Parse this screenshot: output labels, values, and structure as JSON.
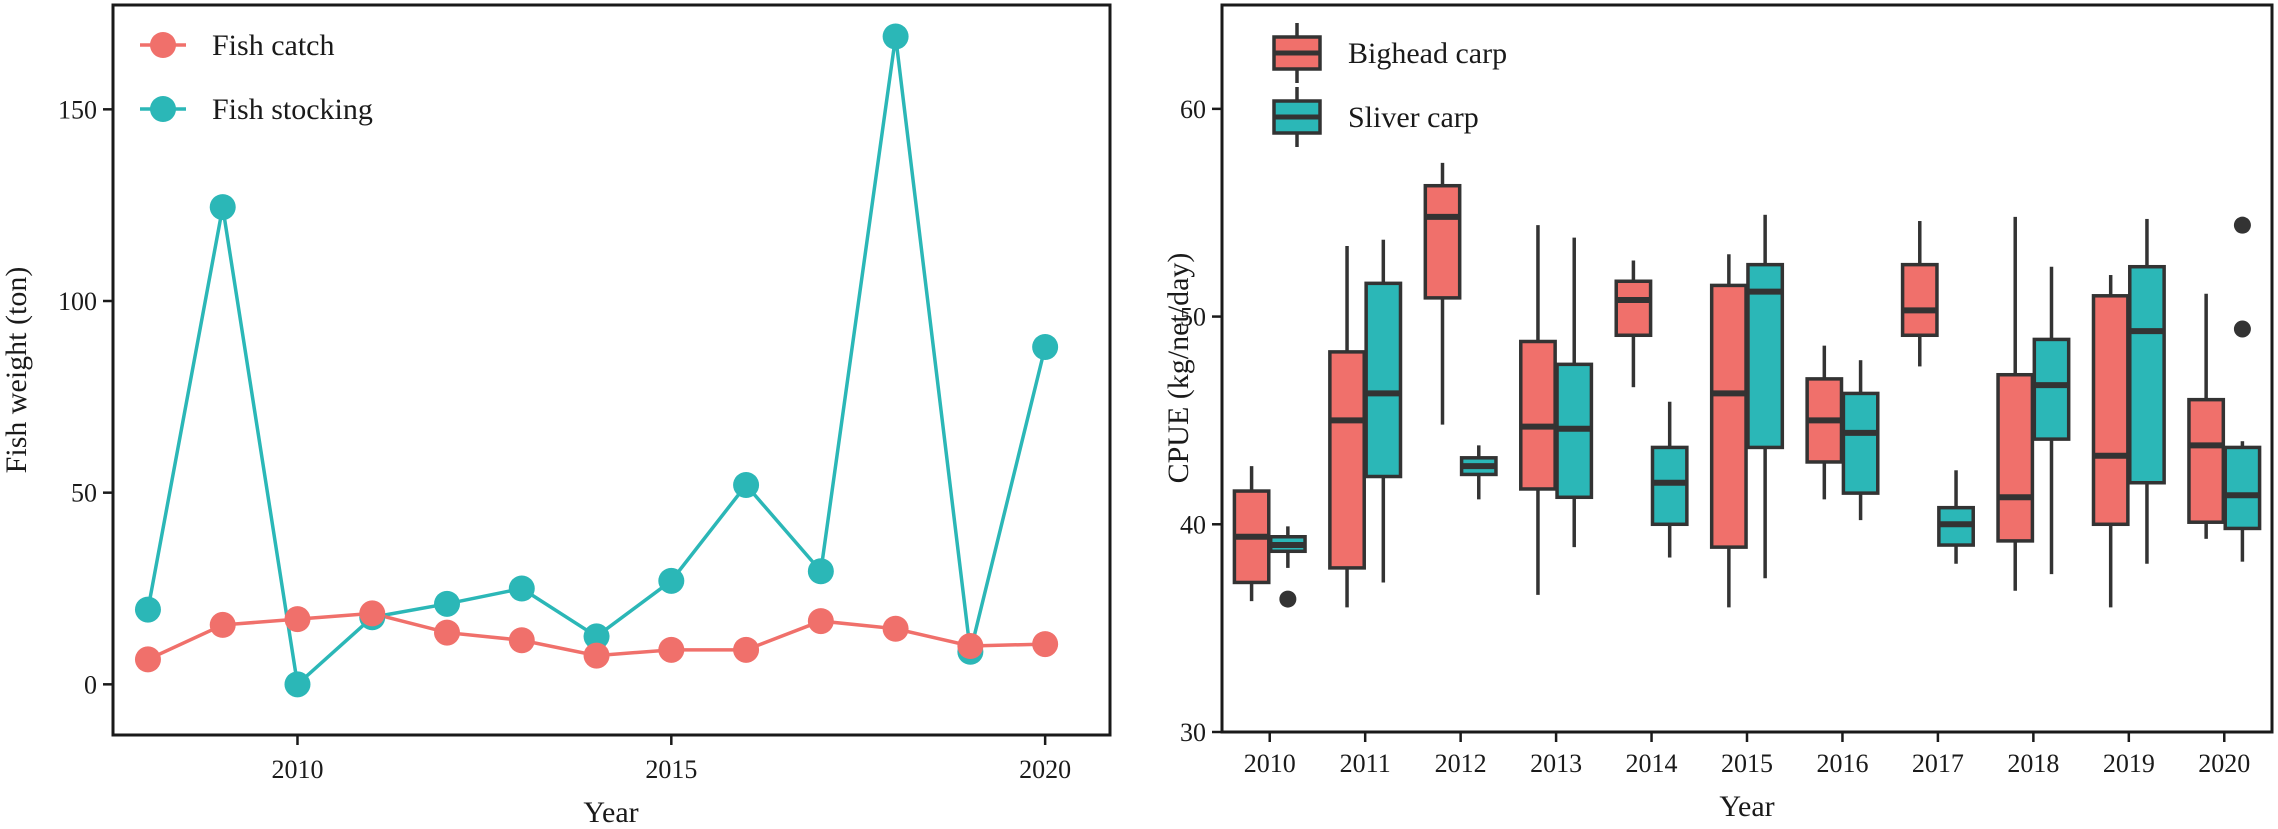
{
  "chart_data": [
    {
      "type": "line",
      "title": "",
      "xlabel": "Year",
      "ylabel": "Fish weight (ton)",
      "xlim": [
        2007.8,
        2020.6
      ],
      "ylim": [
        -8,
        172
      ],
      "xticks": [
        2010,
        2015,
        2020
      ],
      "yticks": [
        0,
        50,
        100,
        150
      ],
      "grid": false,
      "legend_position": "top-left",
      "x": [
        2008,
        2009,
        2010,
        2011,
        2012,
        2013,
        2014,
        2015,
        2016,
        2017,
        2018,
        2019,
        2020
      ],
      "series": [
        {
          "name": "Fish catch",
          "color": "#F0706B",
          "values": [
            6.5,
            15.5,
            17.0,
            18.5,
            13.5,
            11.5,
            7.5,
            9.0,
            9.0,
            16.5,
            14.5,
            10.0,
            10.5
          ]
        },
        {
          "name": "Fish stocking",
          "color": "#2BB7B7",
          "values": [
            19.5,
            124.5,
            0.0,
            17.5,
            21.0,
            25.0,
            12.5,
            27.0,
            52.0,
            29.5,
            169.0,
            8.5,
            88.0
          ]
        }
      ]
    },
    {
      "type": "boxplot",
      "title": "",
      "xlabel": "Year",
      "ylabel": "CPUE (kg/net/day)",
      "ylim": [
        30,
        65
      ],
      "yticks": [
        30,
        40,
        50,
        60
      ],
      "grid": false,
      "legend_position": "top-left",
      "categories": [
        "2010",
        "2011",
        "2012",
        "2013",
        "2014",
        "2015",
        "2016",
        "2017",
        "2018",
        "2019",
        "2020"
      ],
      "series": [
        {
          "name": "Bighead carp",
          "color": "#F0706B",
          "boxes": [
            {
              "min": 36.3,
              "q1": 37.2,
              "median": 39.4,
              "q3": 41.6,
              "max": 42.8,
              "outliers": []
            },
            {
              "min": 36.0,
              "q1": 37.9,
              "median": 45.0,
              "q3": 48.3,
              "max": 53.4,
              "outliers": []
            },
            {
              "min": 44.8,
              "q1": 50.9,
              "median": 54.8,
              "q3": 56.3,
              "max": 57.4,
              "outliers": []
            },
            {
              "min": 36.6,
              "q1": 41.7,
              "median": 44.7,
              "q3": 48.8,
              "max": 54.4,
              "outliers": []
            },
            {
              "min": 46.6,
              "q1": 49.1,
              "median": 50.8,
              "q3": 51.7,
              "max": 52.7,
              "outliers": []
            },
            {
              "min": 36.0,
              "q1": 38.9,
              "median": 46.3,
              "q3": 51.5,
              "max": 53.0,
              "outliers": []
            },
            {
              "min": 41.2,
              "q1": 43.0,
              "median": 45.0,
              "q3": 47.0,
              "max": 48.6,
              "outliers": []
            },
            {
              "min": 47.6,
              "q1": 49.1,
              "median": 50.3,
              "q3": 52.5,
              "max": 54.6,
              "outliers": []
            },
            {
              "min": 36.8,
              "q1": 39.2,
              "median": 41.3,
              "q3": 47.2,
              "max": 54.8,
              "outliers": []
            },
            {
              "min": 36.0,
              "q1": 40.0,
              "median": 43.3,
              "q3": 51.0,
              "max": 52.0,
              "outliers": []
            },
            {
              "min": 39.3,
              "q1": 40.1,
              "median": 43.8,
              "q3": 46.0,
              "max": 51.1,
              "outliers": []
            }
          ]
        },
        {
          "name": "Sliver carp",
          "color": "#2BB7B7",
          "boxes": [
            {
              "min": 37.9,
              "q1": 38.7,
              "median": 39.0,
              "q3": 39.4,
              "max": 39.9,
              "outliers": [
                36.4
              ]
            },
            {
              "min": 37.2,
              "q1": 42.3,
              "median": 46.3,
              "q3": 51.6,
              "max": 53.7,
              "outliers": []
            },
            {
              "min": 41.2,
              "q1": 42.4,
              "median": 42.8,
              "q3": 43.2,
              "max": 43.8,
              "outliers": []
            },
            {
              "min": 38.9,
              "q1": 41.3,
              "median": 44.6,
              "q3": 47.7,
              "max": 53.8,
              "outliers": []
            },
            {
              "min": 38.4,
              "q1": 40.0,
              "median": 42.0,
              "q3": 43.7,
              "max": 45.9,
              "outliers": []
            },
            {
              "min": 37.4,
              "q1": 43.7,
              "median": 51.2,
              "q3": 52.5,
              "max": 54.9,
              "outliers": []
            },
            {
              "min": 40.2,
              "q1": 41.5,
              "median": 44.4,
              "q3": 46.3,
              "max": 47.9,
              "outliers": []
            },
            {
              "min": 38.1,
              "q1": 39.0,
              "median": 40.0,
              "q3": 40.8,
              "max": 42.6,
              "outliers": []
            },
            {
              "min": 37.6,
              "q1": 44.1,
              "median": 46.7,
              "q3": 48.9,
              "max": 52.4,
              "outliers": []
            },
            {
              "min": 38.1,
              "q1": 42.0,
              "median": 49.3,
              "q3": 52.4,
              "max": 54.7,
              "outliers": []
            },
            {
              "min": 38.2,
              "q1": 39.8,
              "median": 41.4,
              "q3": 43.7,
              "max": 44.0,
              "outliers": [
                49.4,
                54.4
              ]
            }
          ]
        }
      ]
    }
  ]
}
